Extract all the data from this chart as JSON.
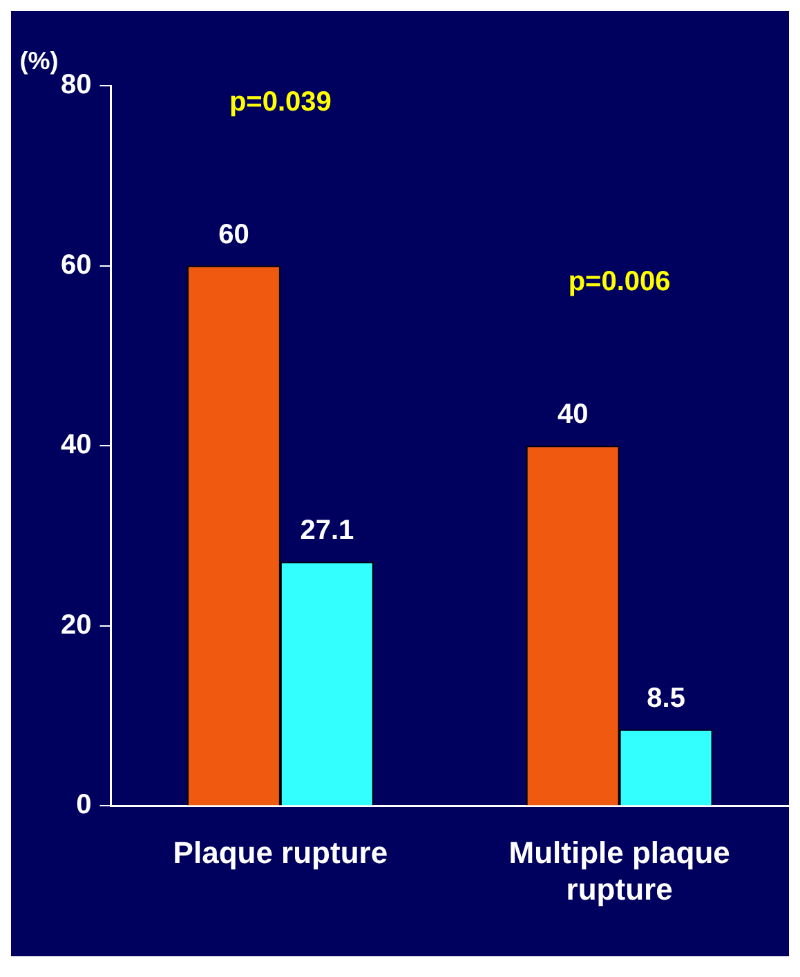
{
  "chart_data": {
    "type": "bar",
    "ylabel": "(%)",
    "categories": [
      "Plaque rupture",
      "Multiple plaque rupture"
    ],
    "series": [
      {
        "color": "#f05a10",
        "values": [
          60,
          40
        ]
      },
      {
        "color": "#33ffff",
        "values": [
          27.1,
          8.5
        ]
      }
    ],
    "ylim": [
      0,
      80
    ],
    "yticks": [
      0,
      20,
      40,
      60,
      80
    ],
    "grid": false,
    "legend": false,
    "data_labels": true,
    "annotations": [
      "p=0.039",
      "p=0.006"
    ]
  }
}
